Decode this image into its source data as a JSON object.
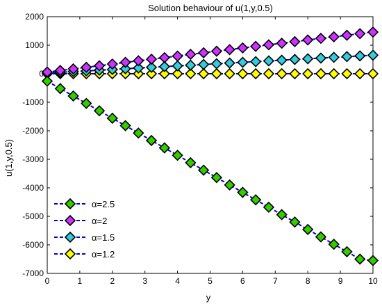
{
  "chart_data": {
    "type": "line",
    "title": "Solution behaviour of u(1,y,0.5)",
    "xlabel": "y",
    "ylabel": "u(1,y,0.5)",
    "xlim": [
      0,
      10
    ],
    "ylim": [
      -7000,
      2000
    ],
    "xticks": [
      "0",
      "1",
      "2",
      "3",
      "4",
      "5",
      "6",
      "7",
      "8",
      "9",
      "10"
    ],
    "yticks": [
      "-7000",
      "-6000",
      "-5000",
      "-4000",
      "-3000",
      "-2000",
      "-1000",
      "0",
      "1000",
      "2000"
    ],
    "grid": false,
    "legend_position": "bottom-left",
    "x": [
      0,
      0.4,
      0.8,
      1.2,
      1.6,
      2.0,
      2.4,
      2.8,
      3.2,
      3.6,
      4.0,
      4.4,
      4.8,
      5.2,
      5.6,
      6.0,
      6.4,
      6.8,
      7.2,
      7.6,
      8.0,
      8.4,
      8.8,
      9.2,
      9.6,
      10.0
    ],
    "series": [
      {
        "name": "α=2.5",
        "color": "#33cc00",
        "line_color": "#0000cc",
        "marker": "diamond",
        "values": [
          -260,
          -520,
          -780,
          -1040,
          -1300,
          -1560,
          -1820,
          -2080,
          -2340,
          -2600,
          -2860,
          -3120,
          -3380,
          -3640,
          -3900,
          -4160,
          -4420,
          -4680,
          -4940,
          -5200,
          -5460,
          -5720,
          -5980,
          -6240,
          -6500,
          -6550
        ]
      },
      {
        "name": "α=2",
        "color": "#cc33ff",
        "line_color": "#0000cc",
        "marker": "diamond",
        "values": [
          60,
          115,
          170,
          225,
          280,
          340,
          400,
          455,
          510,
          565,
          620,
          680,
          735,
          790,
          845,
          905,
          960,
          1015,
          1070,
          1125,
          1185,
          1240,
          1295,
          1350,
          1405,
          1460
        ]
      },
      {
        "name": "α=1.5",
        "color": "#33ccdd",
        "line_color": "#0000cc",
        "marker": "diamond",
        "values": [
          25,
          50,
          75,
          100,
          125,
          150,
          175,
          200,
          225,
          250,
          275,
          300,
          325,
          350,
          375,
          400,
          425,
          450,
          475,
          500,
          525,
          550,
          575,
          600,
          625,
          650
        ]
      },
      {
        "name": "α=1.2",
        "color": "#ffff00",
        "line_color": "#0000cc",
        "marker": "diamond",
        "values": [
          0,
          0,
          0,
          0,
          0,
          0,
          0,
          0,
          0,
          0,
          0,
          0,
          0,
          0,
          0,
          0,
          0,
          0,
          0,
          0,
          0,
          0,
          0,
          0,
          0,
          0
        ]
      }
    ]
  }
}
